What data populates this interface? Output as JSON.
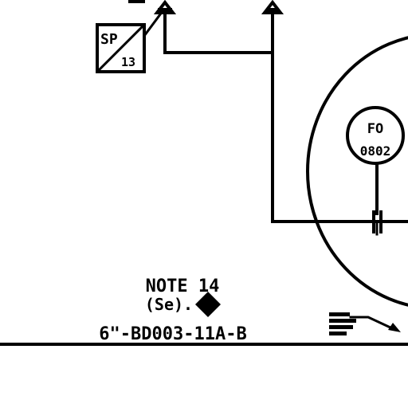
{
  "setpoint_box": {
    "top": "SP",
    "bottom": "13"
  },
  "flow_orifice": {
    "tag": "FO",
    "number": "0802"
  },
  "note": {
    "line1": "NOTE 14",
    "line2": "(Se)."
  },
  "line_spec": "6\"-BD003-11A-B",
  "small_label": {
    "line1": "——",
    "line2": "——"
  },
  "colors": {
    "ink": "#000000",
    "paper": "#ffffff"
  }
}
